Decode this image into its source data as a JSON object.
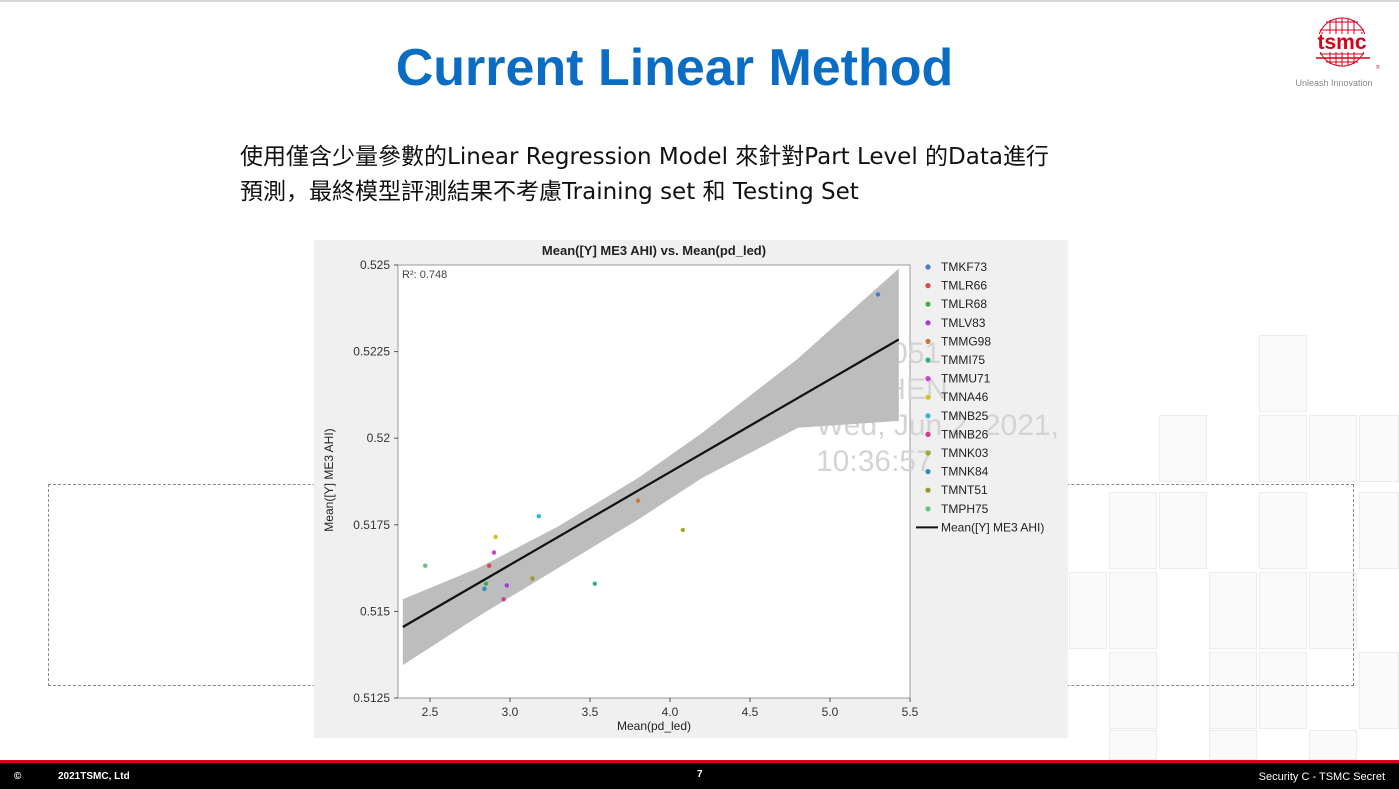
{
  "slide": {
    "title": "Current Linear Method",
    "body_line1": "使用僅含少量參數的Linear Regression Model 來針對Part Level 的Data進行",
    "body_line2": "預測，最終模型評測結果不考慮Training set 和 Testing Set",
    "page_number": "7"
  },
  "logo": {
    "brand": "tsmc",
    "tagline": "Unleash Innovation",
    "color": "#d6001c"
  },
  "footer": {
    "copyright_symbol": "©",
    "copyright_text": "2021TSMC, Ltd",
    "security": "Security C - TSMC Secret"
  },
  "watermark": {
    "lines": [
      "LUP2051",
      "WTCHEN",
      "Wed, Jun 2, 2021,",
      "10:36:57"
    ]
  },
  "chart_data": {
    "type": "scatter",
    "title": "Mean([Y] ME3 AHI) vs. Mean(pd_led)",
    "xlabel": "Mean(pd_led)",
    "ylabel": "Mean([Y] ME3 AHI)",
    "xlim": [
      2.3,
      5.5
    ],
    "ylim": [
      0.5125,
      0.525
    ],
    "xticks": [
      "2.5",
      "3.0",
      "3.5",
      "4.0",
      "4.5",
      "5.0",
      "5.5"
    ],
    "yticks": [
      "0.5125",
      "0.515",
      "0.5175",
      "0.52",
      "0.5225",
      "0.525"
    ],
    "r2_label": "R²: 0.748",
    "legend_position": "right",
    "series": [
      {
        "name": "TMKF73",
        "color": "#4a78d6",
        "x": 5.3,
        "y": 0.52415
      },
      {
        "name": "TMLR66",
        "color": "#d94848",
        "x": 2.87,
        "y": 0.51632
      },
      {
        "name": "TMLR68",
        "color": "#3db04a",
        "x": 2.85,
        "y": 0.5158
      },
      {
        "name": "TMLV83",
        "color": "#a83adf",
        "x": 2.98,
        "y": 0.51575
      },
      {
        "name": "TMMG98",
        "color": "#cc7a2e",
        "x": 3.8,
        "y": 0.5182
      },
      {
        "name": "TMMI75",
        "color": "#2fae9a",
        "x": 3.53,
        "y": 0.5158
      },
      {
        "name": "TMMU71",
        "color": "#cf3fcf",
        "x": 2.9,
        "y": 0.5167
      },
      {
        "name": "TMNA46",
        "color": "#d6c227",
        "x": 2.91,
        "y": 0.51715
      },
      {
        "name": "TMNB25",
        "color": "#34b7d6",
        "x": 3.18,
        "y": 0.51775
      },
      {
        "name": "TMNB26",
        "color": "#d6388a",
        "x": 2.96,
        "y": 0.51535
      },
      {
        "name": "TMNK03",
        "color": "#8fb32a",
        "x": 4.08,
        "y": 0.51735
      },
      {
        "name": "TMNK84",
        "color": "#2a8fbd",
        "x": 2.84,
        "y": 0.51565
      },
      {
        "name": "TMNT51",
        "color": "#9c9a2a",
        "x": 3.14,
        "y": 0.51595
      },
      {
        "name": "TMPH75",
        "color": "#5ec483",
        "x": 2.47,
        "y": 0.51632
      }
    ],
    "fit_line": {
      "name": "Mean([Y] ME3 AHI)",
      "x": [
        2.33,
        5.43
      ],
      "y": [
        0.51455,
        0.52285
      ],
      "color": "#111111"
    },
    "confidence_band": {
      "x": [
        2.33,
        2.8,
        3.3,
        3.8,
        4.2,
        4.8,
        5.43
      ],
      "upper": [
        0.51535,
        0.51625,
        0.51745,
        0.51885,
        0.52015,
        0.5223,
        0.5249
      ],
      "lower": [
        0.51345,
        0.51485,
        0.51625,
        0.51765,
        0.51885,
        0.5203,
        0.5205
      ],
      "color": "#bdbdbd"
    }
  }
}
